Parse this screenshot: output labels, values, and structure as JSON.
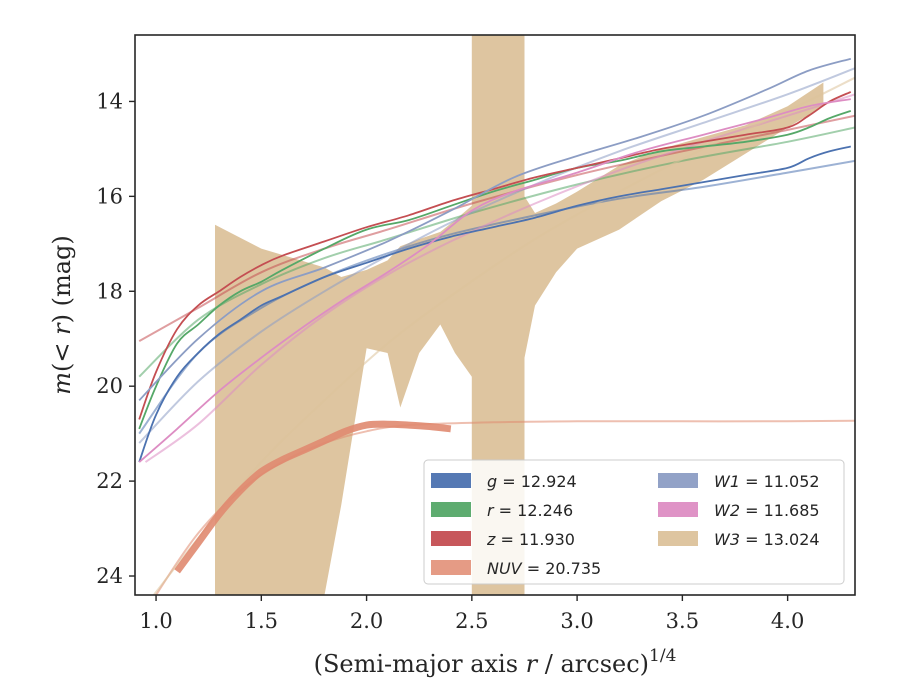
{
  "chart_data": {
    "type": "line",
    "xlabel": "(Semi-major axis r / arcsec)^1/4",
    "ylabel": "m(< r) (mag)",
    "xlim": [
      0.9,
      4.32
    ],
    "ylim": [
      24.4,
      12.6
    ],
    "y_inverted": true,
    "grid": false,
    "legend_placement": "lower-right",
    "xticks": [
      "1.0",
      "1.5",
      "2.0",
      "2.5",
      "3.0",
      "3.5",
      "4.0"
    ],
    "yticks": [
      "14",
      "16",
      "18",
      "20",
      "22",
      "24"
    ],
    "series": [
      {
        "name": "g = 12.924",
        "band": "g",
        "value": "12.924",
        "color": "#4c72b0",
        "x": [
          0.92,
          1.0,
          1.1,
          1.2,
          1.3,
          1.4,
          1.5,
          1.6,
          1.8,
          2.0,
          2.2,
          2.4,
          2.6,
          2.8,
          3.0,
          3.2,
          3.4,
          3.6,
          3.8,
          4.0,
          4.1,
          4.2,
          4.3
        ],
        "y": [
          21.6,
          20.6,
          19.8,
          19.3,
          18.9,
          18.6,
          18.3,
          18.1,
          17.7,
          17.4,
          17.1,
          16.85,
          16.65,
          16.45,
          16.2,
          16.0,
          15.85,
          15.7,
          15.55,
          15.4,
          15.2,
          15.05,
          14.95
        ],
        "model_x": [
          0.92,
          1.2,
          1.5,
          1.8,
          2.1,
          2.4,
          2.8,
          3.2,
          3.6,
          4.0,
          4.32
        ],
        "model_y": [
          21.0,
          19.3,
          18.35,
          17.7,
          17.2,
          16.8,
          16.4,
          16.05,
          15.8,
          15.5,
          15.25
        ]
      },
      {
        "name": "r = 12.246",
        "band": "r",
        "value": "12.246",
        "color": "#55a868",
        "x": [
          0.92,
          1.0,
          1.1,
          1.2,
          1.3,
          1.4,
          1.5,
          1.6,
          1.8,
          2.0,
          2.2,
          2.4,
          2.6,
          2.8,
          3.0,
          3.2,
          3.4,
          3.6,
          3.8,
          4.0,
          4.1,
          4.2,
          4.3
        ],
        "y": [
          20.9,
          20.0,
          19.1,
          18.7,
          18.3,
          18.0,
          17.8,
          17.55,
          17.1,
          16.7,
          16.5,
          16.2,
          15.9,
          15.65,
          15.4,
          15.25,
          15.05,
          14.95,
          14.85,
          14.7,
          14.55,
          14.35,
          14.2
        ],
        "model_x": [
          0.92,
          1.2,
          1.5,
          1.8,
          2.1,
          2.5,
          3.0,
          3.5,
          4.0,
          4.32
        ],
        "model_y": [
          19.8,
          18.6,
          17.85,
          17.3,
          16.9,
          16.35,
          15.75,
          15.25,
          14.85,
          14.55
        ]
      },
      {
        "name": "z = 11.930",
        "band": "z",
        "value": "11.930",
        "color": "#c44e52",
        "x": [
          0.92,
          1.0,
          1.1,
          1.2,
          1.3,
          1.4,
          1.5,
          1.6,
          1.8,
          2.0,
          2.2,
          2.4,
          2.6,
          2.8,
          3.0,
          3.2,
          3.4,
          3.6,
          3.8,
          4.0,
          4.1,
          4.2,
          4.3
        ],
        "y": [
          20.7,
          19.7,
          18.8,
          18.3,
          18.0,
          17.7,
          17.45,
          17.25,
          16.95,
          16.65,
          16.4,
          16.1,
          15.85,
          15.6,
          15.4,
          15.2,
          15.0,
          14.85,
          14.7,
          14.55,
          14.3,
          14.0,
          13.8
        ],
        "model_x": [
          0.92,
          1.2,
          1.5,
          1.8,
          2.1,
          2.5,
          3.0,
          3.5,
          4.0,
          4.32
        ],
        "model_y": [
          19.05,
          18.35,
          17.6,
          17.1,
          16.7,
          16.15,
          15.55,
          15.05,
          14.6,
          14.3
        ]
      },
      {
        "name": "NUV = 20.735",
        "band": "NUV",
        "value": "20.735",
        "color": "#e08a70",
        "x": [
          1.1,
          1.2,
          1.3,
          1.4,
          1.5,
          1.6,
          1.7,
          1.8,
          1.9,
          2.0,
          2.1,
          2.2,
          2.3,
          2.4
        ],
        "y": [
          23.9,
          23.3,
          22.7,
          22.2,
          21.8,
          21.55,
          21.35,
          21.15,
          20.95,
          20.82,
          20.8,
          20.82,
          20.85,
          20.9
        ],
        "model_x": [
          0.9,
          1.0,
          1.2,
          1.4,
          1.6,
          1.8,
          2.0,
          2.2,
          2.6,
          3.0,
          3.5,
          4.0,
          4.32
        ],
        "model_y": [
          25.2,
          24.4,
          23.1,
          22.2,
          21.6,
          21.2,
          20.95,
          20.82,
          20.76,
          20.74,
          20.74,
          20.74,
          20.73
        ]
      },
      {
        "name": "W1 = 11.052",
        "band": "W1",
        "value": "11.052",
        "color": "#8c9dc4",
        "x": [
          0.92,
          1.2,
          1.5,
          1.8,
          2.1,
          2.4,
          2.7,
          3.0,
          3.3,
          3.6,
          3.9,
          4.1,
          4.3
        ],
        "y": [
          20.3,
          19.0,
          18.0,
          17.5,
          16.95,
          16.3,
          15.6,
          15.15,
          14.75,
          14.3,
          13.75,
          13.35,
          13.1
        ],
        "model_x": [
          0.92,
          1.2,
          1.5,
          1.8,
          2.1,
          2.4,
          2.8,
          3.2,
          3.6,
          4.0,
          4.32
        ],
        "model_y": [
          21.2,
          19.9,
          18.85,
          18.0,
          17.25,
          16.55,
          15.75,
          15.05,
          14.45,
          13.85,
          13.3
        ]
      },
      {
        "name": "W2 = 11.685",
        "band": "W2",
        "value": "11.685",
        "color": "#dd8dc3",
        "x": [
          0.92,
          1.1,
          1.3,
          1.5,
          1.7,
          1.9,
          2.1,
          2.3,
          2.5,
          2.7,
          3.0,
          3.3,
          3.6,
          3.9,
          4.1,
          4.3
        ],
        "y": [
          21.6,
          20.9,
          20.1,
          19.4,
          18.75,
          18.15,
          17.6,
          17.0,
          16.3,
          15.9,
          15.5,
          15.05,
          14.7,
          14.35,
          14.1,
          13.95
        ],
        "model_x": [
          0.95,
          1.2,
          1.5,
          1.8,
          2.1,
          2.4,
          2.8,
          3.2,
          3.6,
          4.0,
          4.32
        ],
        "model_y": [
          21.6,
          20.8,
          19.55,
          18.5,
          17.65,
          16.95,
          16.15,
          15.45,
          14.85,
          14.3,
          13.85
        ]
      },
      {
        "name": "W3 = 13.024",
        "band": "W3",
        "value": "13.024",
        "color": "#dcc29b",
        "band_x": [
          1.28,
          1.5,
          1.8,
          1.88,
          2.0,
          2.1,
          2.16,
          2.25,
          2.35,
          2.42,
          2.5,
          2.5,
          2.75,
          2.75,
          2.8,
          2.9,
          3.0,
          3.2,
          3.4,
          3.6,
          3.8,
          4.0,
          4.17
        ],
        "band_upper": [
          16.6,
          17.1,
          17.5,
          17.7,
          17.55,
          17.35,
          17.05,
          16.9,
          16.75,
          16.5,
          16.2,
          12.6,
          12.6,
          16.0,
          16.35,
          16.15,
          15.9,
          15.35,
          15.0,
          14.75,
          14.5,
          14.1,
          13.6
        ],
        "band_lower": [
          24.4,
          24.4,
          24.4,
          22.5,
          19.2,
          19.3,
          20.45,
          19.3,
          18.7,
          19.3,
          19.8,
          24.4,
          24.4,
          19.4,
          18.3,
          17.6,
          17.1,
          16.7,
          16.1,
          15.65,
          15.1,
          14.55,
          14.1
        ],
        "model_x": [
          0.92,
          1.2,
          1.5,
          1.8,
          2.1,
          2.4,
          2.8,
          3.2,
          3.6,
          4.0,
          4.32
        ],
        "model_y": [
          24.8,
          23.2,
          21.6,
          20.3,
          19.1,
          18.1,
          16.9,
          15.9,
          15.0,
          14.2,
          13.5
        ]
      }
    ]
  }
}
